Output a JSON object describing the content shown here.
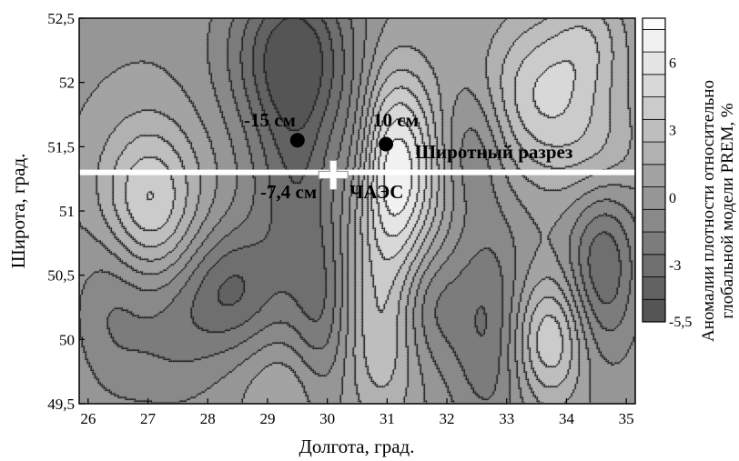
{
  "chart_data": {
    "type": "heatmap",
    "subtype": "contour",
    "xlabel": "Долгота, град.",
    "ylabel": "Широта, град.",
    "xlim": [
      25.85,
      35.15
    ],
    "ylim": [
      49.5,
      52.5
    ],
    "x_ticks": [
      {
        "value": 26,
        "label": "26"
      },
      {
        "value": 27,
        "label": "27"
      },
      {
        "value": 28,
        "label": "28"
      },
      {
        "value": 29,
        "label": "29"
      },
      {
        "value": 30,
        "label": "30"
      },
      {
        "value": 31,
        "label": "31"
      },
      {
        "value": 32,
        "label": "32"
      },
      {
        "value": 33,
        "label": "33"
      },
      {
        "value": 34,
        "label": "34"
      },
      {
        "value": 35,
        "label": "35"
      }
    ],
    "y_ticks": [
      {
        "value": 49.5,
        "label": "49,5"
      },
      {
        "value": 50,
        "label": "50"
      },
      {
        "value": 50.5,
        "label": "50,5"
      },
      {
        "value": 51,
        "label": "51"
      },
      {
        "value": 51.5,
        "label": "51,5"
      },
      {
        "value": 52,
        "label": "52"
      },
      {
        "value": 52.5,
        "label": "52,5"
      }
    ],
    "colorbar": {
      "title_line1": "Аномалии плотности относительно",
      "title_line2": "глобальной модели PREM, %",
      "range": [
        -5.5,
        8
      ],
      "ticks": [
        {
          "value": 6,
          "label": "6"
        },
        {
          "value": 3,
          "label": "3"
        },
        {
          "value": 0,
          "label": "0"
        },
        {
          "value": -3,
          "label": "-3"
        },
        {
          "value": -5.5,
          "label": "-5,5"
        }
      ],
      "bands": [
        {
          "from": -5.5,
          "to": -4.5,
          "color": "#555555"
        },
        {
          "from": -4.5,
          "to": -3.5,
          "color": "#626262"
        },
        {
          "from": -3.5,
          "to": -2.5,
          "color": "#6f6f6f"
        },
        {
          "from": -2.5,
          "to": -1.5,
          "color": "#7c7c7c"
        },
        {
          "from": -1.5,
          "to": -0.5,
          "color": "#898989"
        },
        {
          "from": -0.5,
          "to": 0.5,
          "color": "#969696"
        },
        {
          "from": 0.5,
          "to": 1.5,
          "color": "#a3a3a3"
        },
        {
          "from": 1.5,
          "to": 2.5,
          "color": "#b1b1b1"
        },
        {
          "from": 2.5,
          "to": 3.5,
          "color": "#bebebe"
        },
        {
          "from": 3.5,
          "to": 4.5,
          "color": "#cbcbcb"
        },
        {
          "from": 4.5,
          "to": 5.5,
          "color": "#d8d8d8"
        },
        {
          "from": 5.5,
          "to": 6.5,
          "color": "#e5e5e5"
        },
        {
          "from": 6.5,
          "to": 7.5,
          "color": "#f1f1f1"
        },
        {
          "from": 7.5,
          "to": 8,
          "color": "#fcfcfc"
        }
      ]
    },
    "blobs": [
      {
        "x": 29.4,
        "y": 52.25,
        "value": -4.8,
        "sx": 0.75,
        "sy": 0.45
      },
      {
        "x": 29.5,
        "y": 51.3,
        "value": -3.5,
        "sx": 0.55,
        "sy": 0.75
      },
      {
        "x": 30.5,
        "y": 51.45,
        "value": -2.5,
        "sx": 0.3,
        "sy": 0.45
      },
      {
        "x": 27.0,
        "y": 51.05,
        "value": 5.5,
        "sx": 0.6,
        "sy": 0.45
      },
      {
        "x": 31.1,
        "y": 51.3,
        "value": 8.5,
        "sx": 0.55,
        "sy": 0.55
      },
      {
        "x": 33.6,
        "y": 51.9,
        "value": 5.0,
        "sx": 0.7,
        "sy": 0.45
      },
      {
        "x": 28.4,
        "y": 50.4,
        "value": -3.5,
        "sx": 0.55,
        "sy": 0.35
      },
      {
        "x": 27.4,
        "y": 50.15,
        "value": -2.0,
        "sx": 0.6,
        "sy": 0.45
      },
      {
        "x": 26.4,
        "y": 50.35,
        "value": -1.8,
        "sx": 0.45,
        "sy": 0.5
      },
      {
        "x": 29.3,
        "y": 49.6,
        "value": 2.0,
        "sx": 0.5,
        "sy": 0.3
      },
      {
        "x": 30.9,
        "y": 50.0,
        "value": 3.5,
        "sx": 0.45,
        "sy": 0.5
      },
      {
        "x": 29.9,
        "y": 50.2,
        "value": -2.2,
        "sx": 0.35,
        "sy": 0.5
      },
      {
        "x": 31.7,
        "y": 50.3,
        "value": -2.3,
        "sx": 0.4,
        "sy": 0.35
      },
      {
        "x": 33.7,
        "y": 50.0,
        "value": 5.0,
        "sx": 0.45,
        "sy": 0.35
      },
      {
        "x": 32.7,
        "y": 50.1,
        "value": -3.0,
        "sx": 0.45,
        "sy": 0.6
      },
      {
        "x": 34.6,
        "y": 50.6,
        "value": -4.0,
        "sx": 0.4,
        "sy": 0.5
      },
      {
        "x": 32.4,
        "y": 51.5,
        "value": -2.0,
        "sx": 0.4,
        "sy": 0.35
      },
      {
        "x": 34.4,
        "y": 52.35,
        "value": 2.5,
        "sx": 0.45,
        "sy": 0.3
      },
      {
        "x": 34.6,
        "y": 51.4,
        "value": 2.5,
        "sx": 0.5,
        "sy": 0.35
      }
    ],
    "baseline": 0.3,
    "profile_line": {
      "y": 51.3,
      "label": "Широтный разрез"
    },
    "points": [
      {
        "x": 29.5,
        "y": 51.55,
        "label": "-15 см"
      },
      {
        "x": 30.98,
        "y": 51.52,
        "label": "10 см"
      }
    ],
    "station": {
      "x": 30.1,
      "y": 51.28,
      "depth_label": "-7,4 см",
      "name": "ЧАЭС"
    }
  }
}
